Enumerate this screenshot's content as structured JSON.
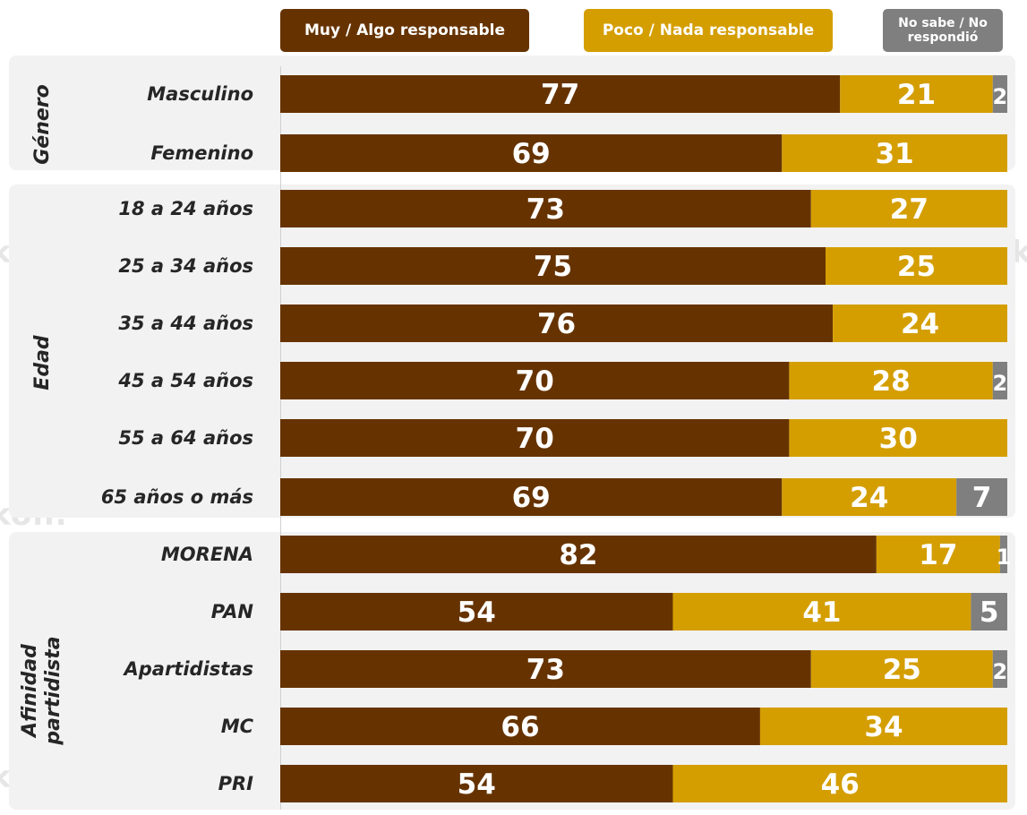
{
  "legend": {
    "muy": "Muy / Algo responsable",
    "poco": "Poco / Nada responsable",
    "ns": "No sabe / No respondió"
  },
  "watermark_text": "enkoll.",
  "colors": {
    "muy": "#663300",
    "poco": "#D49E00",
    "ns": "#7F7F7F"
  },
  "groups": {
    "genero": "Género",
    "edad": "Edad",
    "afinidad": "Afinidad partidista"
  },
  "chart_data": {
    "type": "bar",
    "stacked": true,
    "orientation": "horizontal",
    "categories": [
      "Masculino",
      "Femenino",
      "18 a 24 años",
      "25 a 34 años",
      "35 a 44 años",
      "45 a 54 años",
      "55 a 64 años",
      "65 años o más",
      "MORENA",
      "PAN",
      "Apartidistas",
      "MC",
      "PRI"
    ],
    "series": [
      {
        "name": "Muy / Algo responsable",
        "values": [
          77,
          69,
          73,
          75,
          76,
          70,
          70,
          69,
          82,
          54,
          73,
          66,
          54
        ]
      },
      {
        "name": "Poco / Nada responsable",
        "values": [
          21,
          31,
          27,
          25,
          24,
          28,
          30,
          24,
          17,
          41,
          25,
          34,
          46
        ]
      },
      {
        "name": "No sabe / No respondió",
        "values": [
          2,
          0,
          0,
          0,
          0,
          2,
          0,
          7,
          1,
          5,
          2,
          0,
          0
        ]
      }
    ],
    "xlim": [
      0,
      100
    ]
  }
}
